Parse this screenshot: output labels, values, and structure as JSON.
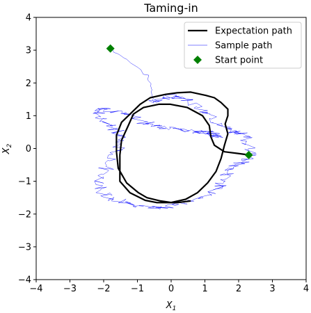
{
  "chart_data": {
    "type": "line",
    "title": "Taming-in",
    "xlabel": "X",
    "xlabel_sub": "1",
    "ylabel": "X",
    "ylabel_sub": "2",
    "xlim": [
      -4,
      4
    ],
    "ylim": [
      -4,
      4
    ],
    "xticks": [
      -4,
      -3,
      -2,
      -1,
      0,
      1,
      2,
      3,
      4
    ],
    "yticks": [
      -4,
      -3,
      -2,
      -1,
      0,
      1,
      2,
      3,
      4
    ],
    "xtick_labels": [
      "−4",
      "−3",
      "−2",
      "−1",
      "0",
      "1",
      "2",
      "3",
      "4"
    ],
    "ytick_labels": [
      "−4",
      "−3",
      "−2",
      "−1",
      "0",
      "1",
      "2",
      "3",
      "4"
    ],
    "grid": false,
    "legend_position": "top-right",
    "series": [
      {
        "name": "Expectation path",
        "color": "#000000",
        "style": "solid-thick",
        "x": [
          2.3,
          2.0,
          1.6,
          1.25,
          1.2,
          1.15,
          0.9,
          0.5,
          0.0,
          -0.4,
          -0.8,
          -1.1,
          -1.3,
          -1.45,
          -1.5,
          -1.55,
          -1.5,
          -1.2,
          -0.8,
          -0.4,
          0.0,
          0.4,
          0.8,
          1.1,
          1.3,
          1.5,
          1.6,
          1.65,
          1.62,
          1.7,
          1.65,
          1.5,
          1.3,
          1.0,
          0.6,
          0.2,
          -0.2,
          -0.6,
          -0.9,
          -1.2,
          -1.45,
          -1.6,
          -1.65,
          -1.55,
          -1.3,
          -1.0,
          -0.7,
          -0.3,
          0.0,
          0.2,
          0.6
        ],
        "y": [
          -0.2,
          -0.15,
          -0.1,
          0.1,
          0.35,
          0.7,
          1.0,
          1.25,
          1.35,
          1.35,
          1.25,
          1.05,
          0.7,
          0.25,
          -0.2,
          -0.65,
          -1.0,
          -1.35,
          -1.58,
          -1.65,
          -1.65,
          -1.55,
          -1.35,
          -1.05,
          -0.7,
          -0.3,
          0.1,
          0.45,
          0.75,
          1.0,
          1.2,
          1.4,
          1.55,
          1.62,
          1.72,
          1.7,
          1.65,
          1.55,
          1.35,
          1.1,
          0.8,
          0.4,
          -0.1,
          -0.6,
          -1.05,
          -1.35,
          -1.5,
          -1.6,
          -1.65,
          -1.65,
          -1.6
        ]
      },
      {
        "name": "Sample path",
        "color": "#0000ff",
        "style": "thin-noisy",
        "x": [
          -1.8,
          -1.6,
          -1.3,
          -1.0,
          -0.7,
          -0.6,
          -0.55,
          -0.5,
          -0.3,
          -0.1,
          0.2,
          0.5,
          0.8,
          1.1,
          1.4,
          1.6,
          1.8,
          2.0,
          2.2,
          2.3,
          2.4,
          2.2,
          1.9,
          1.7,
          1.6,
          1.5,
          1.3,
          1.0,
          0.6,
          0.2,
          -0.2,
          -0.6,
          -1.0,
          -1.4,
          -1.8,
          -2.1,
          -2.2,
          -2.0,
          -1.8,
          -1.6,
          -1.5,
          -1.6,
          -1.8,
          -2.0,
          -2.2,
          -2.1,
          -1.8,
          -1.5,
          -1.2,
          -0.8,
          -0.4,
          0.0,
          0.4,
          0.8,
          1.0,
          1.2,
          1.3,
          1.4
        ],
        "y": [
          3.05,
          2.9,
          2.7,
          2.5,
          2.2,
          1.9,
          1.6,
          1.4,
          1.5,
          1.6,
          1.55,
          1.5,
          1.3,
          1.1,
          0.8,
          0.6,
          0.5,
          0.5,
          0.4,
          0.1,
          -0.2,
          -0.4,
          -0.5,
          -0.7,
          -0.9,
          -1.1,
          -1.3,
          -1.5,
          -1.6,
          -1.7,
          -1.8,
          -1.8,
          -1.75,
          -1.6,
          -1.5,
          -1.3,
          -1.0,
          -0.7,
          -0.4,
          -0.1,
          0.2,
          0.5,
          0.7,
          0.9,
          1.1,
          1.2,
          1.15,
          1.1,
          1.0,
          0.8,
          0.7,
          0.6,
          0.55,
          0.5,
          0.5,
          0.45,
          0.4,
          0.35
        ]
      },
      {
        "name": "Start point",
        "color": "#008000",
        "style": "marker-diamond",
        "x": [
          -1.8,
          2.3
        ],
        "y": [
          3.05,
          -0.2
        ]
      }
    ]
  }
}
